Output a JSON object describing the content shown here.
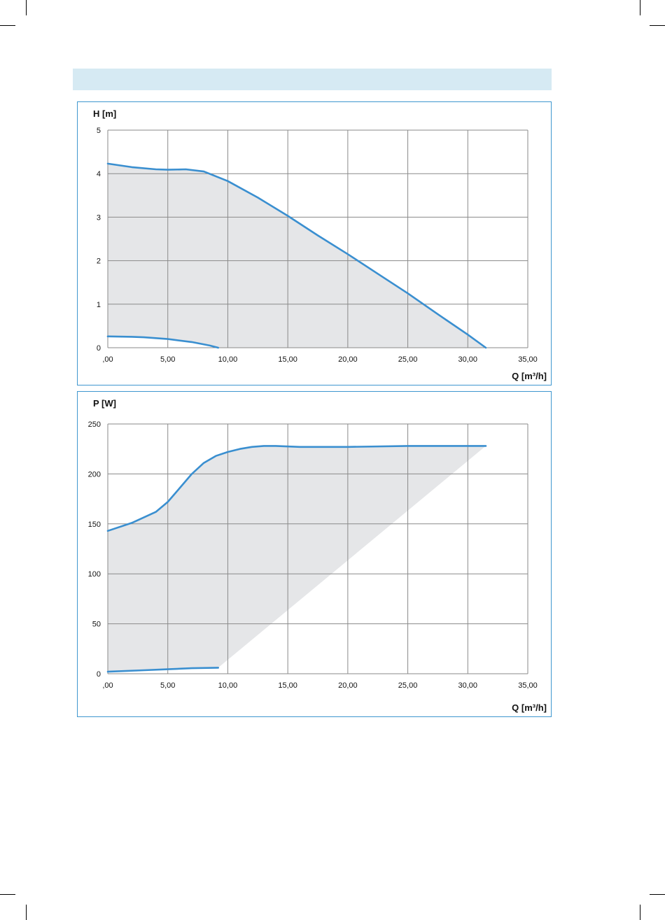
{
  "header": {
    "color": "#d6eaf3"
  },
  "colors": {
    "curve": "#3a8fd0",
    "fill": "#e5e6e8",
    "grid": "#8a8a8a",
    "frame": "#3f97cf"
  },
  "chart_data": [
    {
      "type": "area",
      "ylabel": "H [m]",
      "xlabel": "Q [m³/h]",
      "xlim": [
        0,
        35
      ],
      "ylim": [
        0,
        5
      ],
      "grid": true,
      "x_ticks": [
        0,
        5,
        10,
        15,
        20,
        25,
        30,
        35
      ],
      "x_tick_labels": [
        ",00",
        "5,00",
        "10,00",
        "15,00",
        "20,00",
        "25,00",
        "30,00",
        "35,00"
      ],
      "y_ticks": [
        0,
        1,
        2,
        3,
        4,
        5
      ],
      "y_tick_labels": [
        "0",
        "1",
        "2",
        "3",
        "4",
        "5"
      ],
      "series": [
        {
          "x": [
            0,
            2,
            4,
            5,
            6.5,
            8,
            10,
            12.5,
            15,
            17.5,
            20,
            22.5,
            25,
            27.5,
            30,
            31.5
          ],
          "y": [
            4.23,
            4.15,
            4.1,
            4.09,
            4.1,
            4.05,
            3.83,
            3.45,
            3.03,
            2.58,
            2.15,
            1.7,
            1.25,
            0.77,
            0.3,
            0.0
          ]
        },
        {
          "x": [
            0,
            2,
            3,
            5,
            7,
            8.5,
            9.2
          ],
          "y": [
            0.26,
            0.25,
            0.24,
            0.2,
            0.13,
            0.05,
            0.0
          ]
        }
      ]
    },
    {
      "type": "area",
      "ylabel": "P [W]",
      "xlabel": "Q [m³/h]",
      "xlim": [
        0,
        35
      ],
      "ylim": [
        0,
        250
      ],
      "grid": true,
      "x_ticks": [
        0,
        5,
        10,
        15,
        20,
        25,
        30,
        35
      ],
      "x_tick_labels": [
        ",00",
        "5,00",
        "10,00",
        "15,00",
        "20,00",
        "25,00",
        "30,00",
        "35,00"
      ],
      "y_ticks": [
        0,
        50,
        100,
        150,
        200,
        250
      ],
      "y_tick_labels": [
        "0",
        "50",
        "100",
        "150",
        "200",
        "250"
      ],
      "series": [
        {
          "x": [
            0,
            2,
            4,
            5,
            6,
            7,
            8,
            9,
            10,
            11,
            12,
            13,
            14,
            16,
            20,
            25,
            30,
            31.5
          ],
          "y": [
            143,
            151,
            162,
            172,
            186,
            200,
            211,
            218,
            222,
            225,
            227,
            228,
            228,
            227,
            227,
            228,
            228,
            228
          ]
        },
        {
          "x": [
            0,
            3,
            5,
            7,
            9.2
          ],
          "y": [
            2,
            3.5,
            4.5,
            5.5,
            6
          ]
        }
      ]
    }
  ]
}
